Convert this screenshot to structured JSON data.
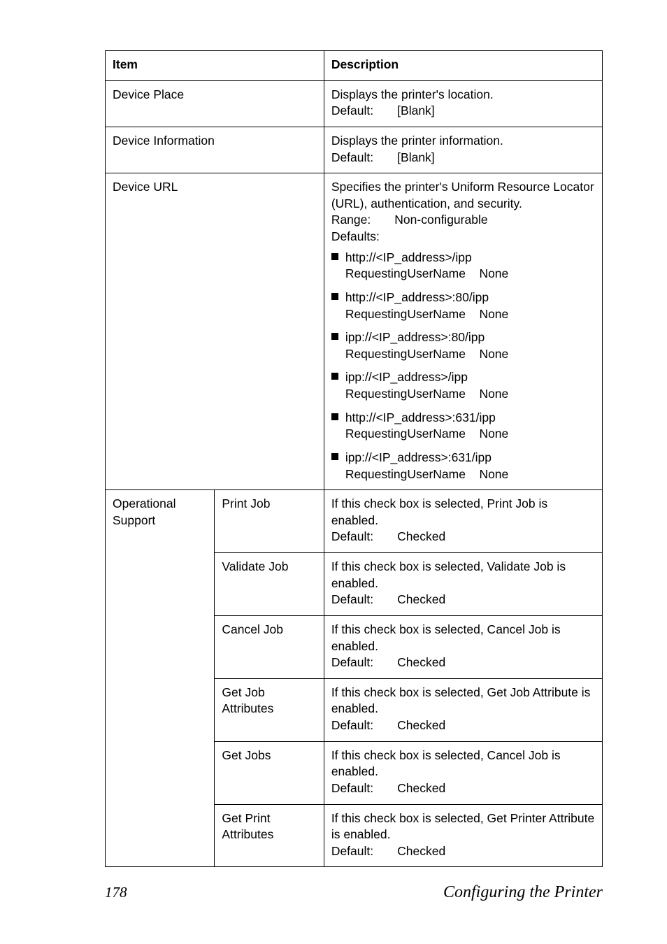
{
  "header": {
    "item": "Item",
    "description": "Description"
  },
  "rows": {
    "devicePlace": {
      "label": "Device Place",
      "desc_line1": "Displays the printer's location.",
      "default_label": "Default:",
      "default_value": "[Blank]"
    },
    "deviceInfo": {
      "label": "Device Information",
      "desc_line1": "Displays the printer information.",
      "default_label": "Default:",
      "default_value": "[Blank]"
    },
    "deviceUrl": {
      "label": "Device URL",
      "intro": "Specifies the printer's Uniform Resource Locator (URL), authentication, and security.",
      "range_label": "Range:",
      "range_value": "Non-configurable",
      "defaults_label": "Defaults:",
      "bullets": [
        {
          "url": "http://<IP_address>/ipp",
          "req": "RequestingUserName",
          "val": "None"
        },
        {
          "url": "http://<IP_address>:80/ipp",
          "req": "RequestingUserName",
          "val": "None"
        },
        {
          "url": "ipp://<IP_address>:80/ipp",
          "req": "RequestingUserName",
          "val": "None"
        },
        {
          "url": "ipp://<IP_address>/ipp",
          "req": "RequestingUserName",
          "val": "None"
        },
        {
          "url": "http://<IP_address>:631/ipp",
          "req": "RequestingUserName",
          "val": "None"
        },
        {
          "url": "ipp://<IP_address>:631/ipp",
          "req": "RequestingUserName",
          "val": "None"
        }
      ]
    },
    "operational": {
      "group_label": "Operational Support",
      "printJob": {
        "label": "Print Job",
        "desc": "If this check box is selected, Print Job is enabled.",
        "default_label": "Default:",
        "default_value": "Checked"
      },
      "validateJob": {
        "label": "Validate Job",
        "desc": "If this check box is selected, Validate Job is enabled.",
        "default_label": "Default:",
        "default_value": "Checked"
      },
      "cancelJob": {
        "label": "Cancel Job",
        "desc": "If this check box is selected, Cancel Job is enabled.",
        "default_label": "Default:",
        "default_value": "Checked"
      },
      "getJobAttr": {
        "label": "Get Job Attributes",
        "desc": "If this check box is selected, Get Job Attribute is enabled.",
        "default_label": "Default:",
        "default_value": "Checked"
      },
      "getJobs": {
        "label": "Get Jobs",
        "desc": "If this check box is selected, Cancel Job is enabled.",
        "default_label": "Default:",
        "default_value": "Checked"
      },
      "getPrintAttr": {
        "label": "Get Print Attributes",
        "desc": "If this check box is selected, Get Printer Attribute is enabled.",
        "default_label": "Default:",
        "default_value": "Checked"
      }
    }
  },
  "footer": {
    "page": "178",
    "title": "Configuring the Printer"
  }
}
